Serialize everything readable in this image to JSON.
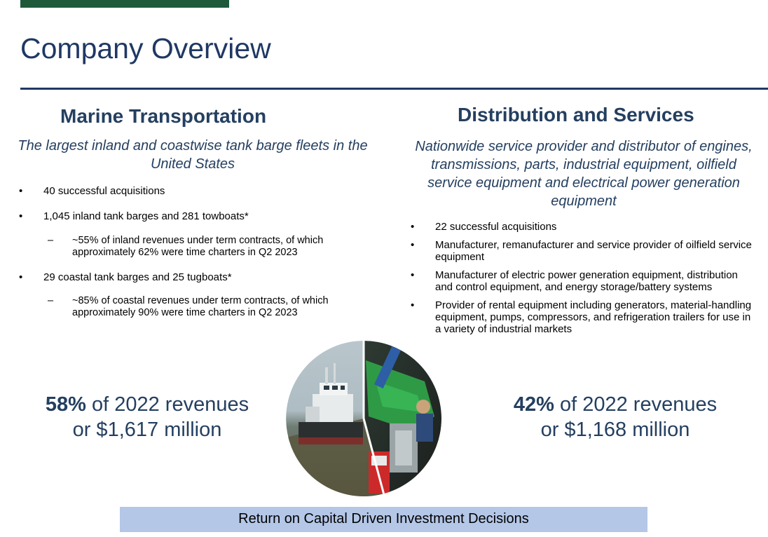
{
  "page": {
    "title": "Company Overview"
  },
  "colors": {
    "accent_bar": "#1e5a3a",
    "title": "#1f3864",
    "heading": "#243f60",
    "footer_band": "#b4c7e7"
  },
  "marine": {
    "heading": "Marine Transportation",
    "tagline": "The largest inland and coastwise tank barge fleets in the United States",
    "bullets": [
      "40 successful acquisitions",
      "1,045 inland tank barges and 281 towboats*",
      "~55% of inland revenues under term contracts, of which approximately 62% were time charters in Q2 2023",
      "29 coastal tank barges and 25 tugboats*",
      "~85% of coastal revenues under term contracts, of which approximately 90% were time charters in Q2 2023"
    ],
    "revenue_pct": "58%",
    "revenue_line1_rest": " of 2022 revenues",
    "revenue_line2": "or $1,617 million"
  },
  "distribution": {
    "heading": "Distribution and Services",
    "tagline": "Nationwide service provider and distributor of engines, transmissions, parts, industrial equipment, oilfield service equipment and electrical power generation equipment",
    "bullets": [
      "22 successful acquisitions",
      "Manufacturer, remanufacturer and service provider of oilfield service equipment",
      "Manufacturer of electric power generation equipment, distribution and control equipment, and energy storage/battery systems",
      "Provider of rental equipment including generators, material-handling equipment, pumps, compressors, and refrigeration trailers for use in a variety of industrial markets"
    ],
    "revenue_pct": "42%",
    "revenue_line1_rest": " of 2022 revenues",
    "revenue_line2": "or $1,168 million"
  },
  "pie": {
    "slices": [
      {
        "segment": "marine",
        "share": 58
      },
      {
        "segment": "distribution",
        "share": 42
      }
    ]
  },
  "footer": {
    "text": "Return on Capital Driven Investment Decisions"
  }
}
